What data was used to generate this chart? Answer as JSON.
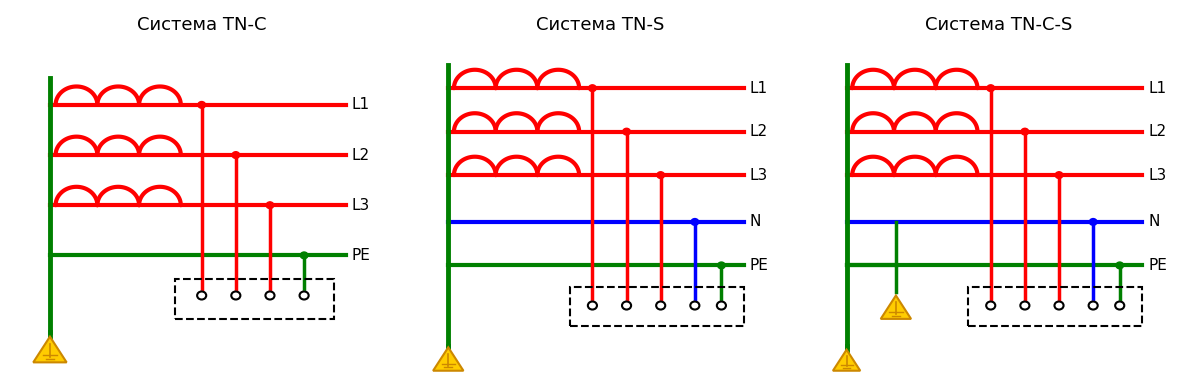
{
  "titles": [
    "Система TN-C",
    "Система TN-S",
    "Система TN-C-S"
  ],
  "red": "#ff0000",
  "green": "#008000",
  "blue": "#0000ff",
  "black": "#000000",
  "yellow": "#ffcc00",
  "yellow_edge": "#cc8800",
  "bg": "#ffffff",
  "title_fontsize": 13,
  "label_fontsize": 11,
  "lw_bus": 3.5,
  "lw_line": 3.0,
  "lw_drop": 2.5,
  "lw_coil": 3.0,
  "dot_r": 0.008,
  "open_dot_r": 0.01,
  "coil_r": 0.05,
  "coil_n": 3
}
